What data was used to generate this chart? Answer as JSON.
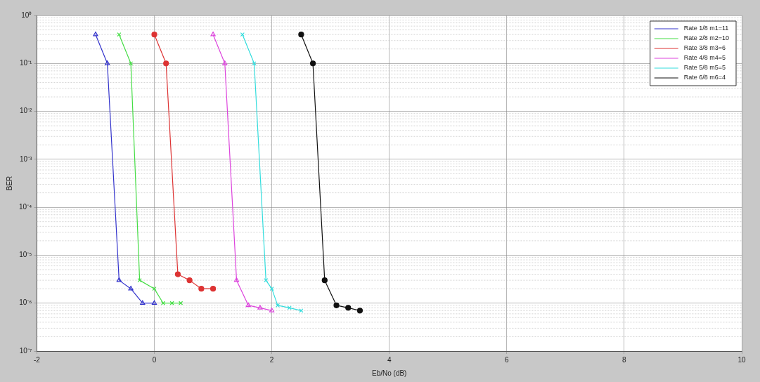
{
  "chart_data": {
    "type": "line",
    "xlabel": "Eb/No (dB)",
    "ylabel": "BER",
    "log": "y",
    "grid": true,
    "legend": "top right",
    "line_style": "solid",
    "xlim": [
      -2,
      10
    ],
    "xticks": [
      -2,
      0,
      2,
      4,
      6,
      8,
      10
    ],
    "ylim": [
      1e-07,
      1
    ],
    "yticks": [
      {
        "value": 1e-07,
        "label": "10⁻⁷"
      },
      {
        "value": 1e-06,
        "label": "10⁻⁶"
      },
      {
        "value": 1e-05,
        "label": "10⁻⁵"
      },
      {
        "value": 0.0001,
        "label": "10⁻⁴"
      },
      {
        "value": 0.001,
        "label": "10⁻³"
      },
      {
        "value": 0.01,
        "label": "10⁻²"
      },
      {
        "value": 0.1,
        "label": "10⁻¹"
      },
      {
        "value": 1,
        "label": "10⁰"
      }
    ],
    "series": [
      {
        "name": "Rate 1/8 m1=11",
        "color": "#3333cc",
        "marker": "triangle",
        "x": [
          -1,
          -0.8,
          -0.6,
          -0.4,
          -0.2,
          0
        ],
        "values": [
          0.4,
          0.1,
          3e-06,
          2e-06,
          1e-06,
          1e-06
        ]
      },
      {
        "name": "Rate 2/8 m2=10",
        "color": "#44dd44",
        "marker": "cross",
        "x": [
          -0.6,
          -0.4,
          -0.25,
          0,
          0.15,
          0.3,
          0.45
        ],
        "values": [
          0.4,
          0.1,
          3e-06,
          2e-06,
          1e-06,
          1e-06,
          1e-06
        ]
      },
      {
        "name": "Rate 3/8 m3=6",
        "color": "#dd3333",
        "marker": "circle",
        "x": [
          0,
          0.2,
          0.4,
          0.6,
          0.8,
          1
        ],
        "values": [
          0.4,
          0.1,
          4e-06,
          3e-06,
          2e-06,
          2e-06
        ]
      },
      {
        "name": "Rate 4/8 m4=5",
        "color": "#dd44dd",
        "marker": "triangle",
        "x": [
          1,
          1.2,
          1.4,
          1.6,
          1.8,
          2
        ],
        "values": [
          0.4,
          0.1,
          3e-06,
          9e-07,
          8e-07,
          7e-07
        ]
      },
      {
        "name": "Rate 5/8 m5=5",
        "color": "#33dddd",
        "marker": "cross",
        "x": [
          1.5,
          1.7,
          1.9,
          2,
          2.1,
          2.3,
          2.5
        ],
        "values": [
          0.4,
          0.1,
          3e-06,
          2e-06,
          9e-07,
          8e-07,
          7e-07
        ]
      },
      {
        "name": "Rate 6/8 m6=4",
        "color": "#111111",
        "marker": "circle",
        "x": [
          2.5,
          2.7,
          2.9,
          3.1,
          3.3,
          3.5
        ],
        "values": [
          0.4,
          0.1,
          3e-06,
          9e-07,
          8e-07,
          7e-07
        ]
      }
    ]
  }
}
